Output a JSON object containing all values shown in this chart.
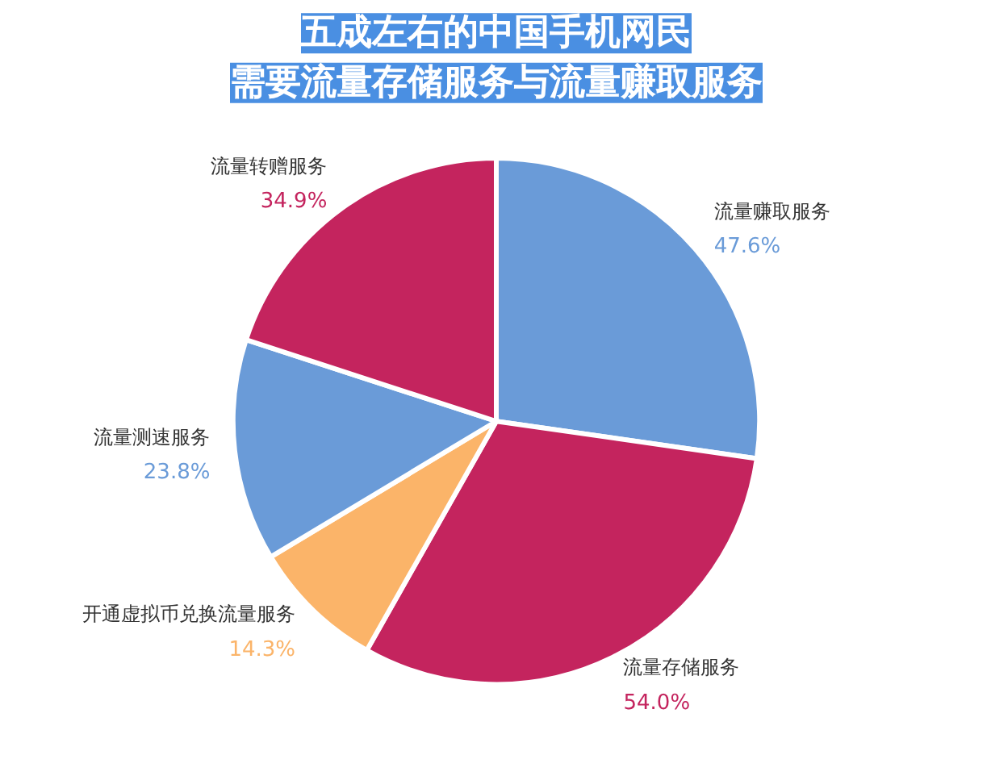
{
  "chart_data": {
    "type": "pie",
    "title": "五成左右的中国手机网民",
    "subtitle": "需要流量存储服务与流量赚取服务",
    "categories": [
      "流量赚取服务",
      "流量存储服务",
      "开通虚拟币兑换流量服务",
      "流量测速服务",
      "流量转赠服务"
    ],
    "values": [
      47.6,
      54.0,
      14.3,
      23.8,
      34.9
    ],
    "value_labels": [
      "47.6%",
      "54.0%",
      "14.3%",
      "23.8%",
      "34.9%"
    ],
    "colors": [
      "#6a9bd8",
      "#c4245e",
      "#fbb469",
      "#6a9bd8",
      "#c4245e"
    ]
  }
}
